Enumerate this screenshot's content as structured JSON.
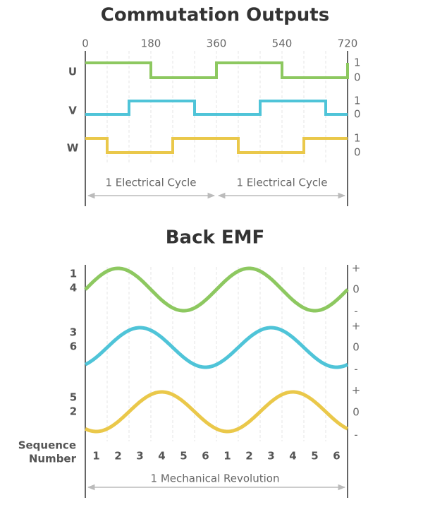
{
  "commutation": {
    "title": "Commutation Outputs",
    "angle_ticks": [
      "0",
      "180",
      "360",
      "540",
      "720"
    ],
    "signals": [
      {
        "name": "U",
        "high": "1",
        "low": "0"
      },
      {
        "name": "V",
        "high": "1",
        "low": "0"
      },
      {
        "name": "W",
        "high": "1",
        "low": "0"
      }
    ],
    "cycle_labels": [
      "1 Electrical Cycle",
      "1 Electrical Cycle"
    ]
  },
  "back_emf": {
    "title": "Back EMF",
    "rows": [
      {
        "labels": [
          "1",
          "4"
        ],
        "levels": [
          "+",
          "0",
          "-"
        ]
      },
      {
        "labels": [
          "3",
          "6"
        ],
        "levels": [
          "+",
          "0",
          "-"
        ]
      },
      {
        "labels": [
          "5",
          "2"
        ],
        "levels": [
          "+",
          "0",
          "-"
        ]
      }
    ],
    "sequence_title": [
      "Sequence",
      "Number"
    ],
    "sequence": [
      "1",
      "2",
      "3",
      "4",
      "5",
      "6",
      "1",
      "2",
      "3",
      "4",
      "5",
      "6"
    ],
    "revolution_label": "1 Mechanical Revolution"
  }
}
